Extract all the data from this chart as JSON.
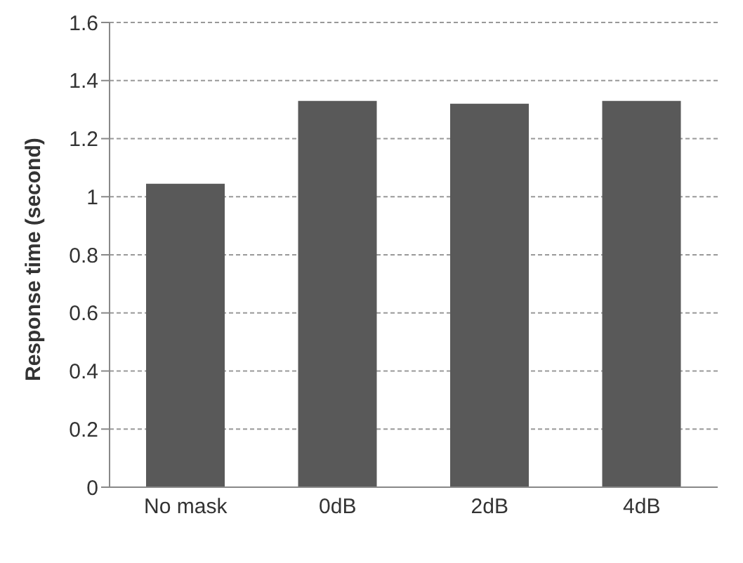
{
  "chart_data": {
    "type": "bar",
    "ylabel": "Response time (second)",
    "categories": [
      "No mask",
      "0dB",
      "2dB",
      "4dB"
    ],
    "values": [
      1.045,
      1.33,
      1.32,
      1.33
    ],
    "color": "#595959",
    "ylim": [
      0,
      1.6
    ],
    "yticks": [
      0,
      0.2,
      0.4,
      0.6,
      0.8,
      1,
      1.2,
      1.4,
      1.6
    ],
    "grid": "y"
  }
}
